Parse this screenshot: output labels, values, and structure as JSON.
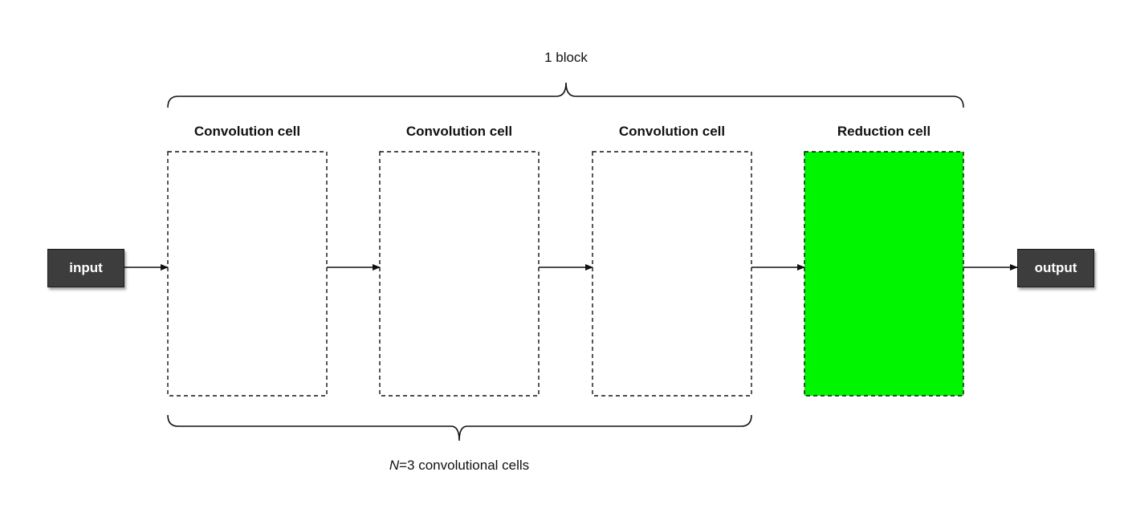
{
  "diagram": {
    "top_brace_label": "1 block",
    "bottom_brace_label": {
      "variable": "N",
      "rest": "=3 convolutional cells"
    },
    "input_label": "input",
    "output_label": "output",
    "cells": [
      {
        "title": "Convolution cell",
        "kind": "convolution"
      },
      {
        "title": "Convolution cell",
        "kind": "convolution"
      },
      {
        "title": "Convolution cell",
        "kind": "convolution"
      },
      {
        "title": "Reduction cell",
        "kind": "reduction"
      }
    ],
    "colors": {
      "reduction_fill": "#00f500",
      "io_fill": "#3d3d3d",
      "line": "#111111"
    }
  }
}
